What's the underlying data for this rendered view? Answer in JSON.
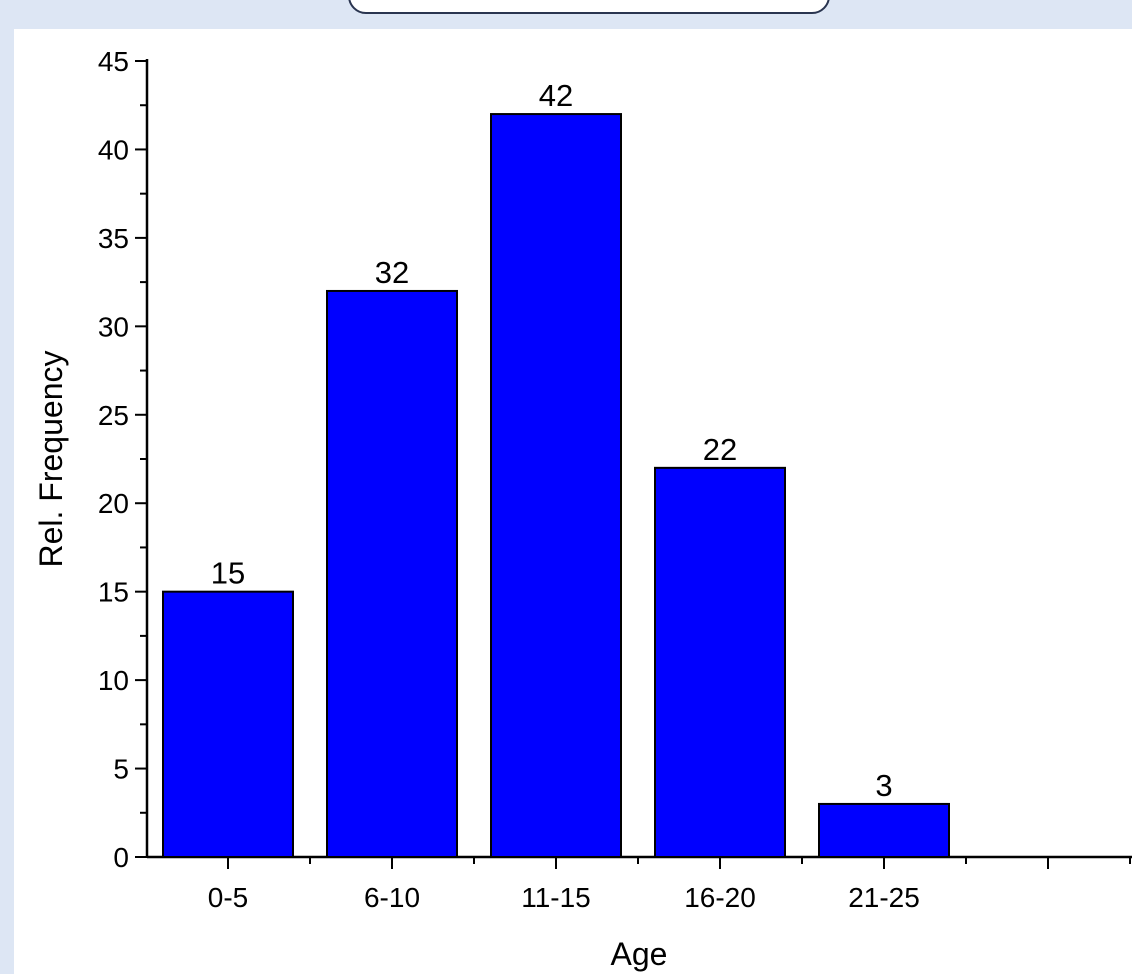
{
  "colors": {
    "bar_fill": "#0000ff",
    "bar_stroke": "#000000",
    "page_background": "#dde6f4",
    "plot_background": "#ffffff"
  },
  "chart_data": {
    "type": "bar",
    "categories": [
      "0-5",
      "6-10",
      "11-15",
      "16-20",
      "21-25"
    ],
    "values": [
      15,
      32,
      42,
      22,
      3
    ],
    "data_labels": [
      "15",
      "32",
      "42",
      "22",
      "3"
    ],
    "title": "",
    "xlabel": "Age",
    "ylabel": "Rel. Frequency",
    "ylim": [
      0,
      45
    ],
    "yticks": [
      0,
      5,
      10,
      15,
      20,
      25,
      30,
      35,
      40,
      45
    ],
    "grid": false,
    "legend": "none"
  }
}
